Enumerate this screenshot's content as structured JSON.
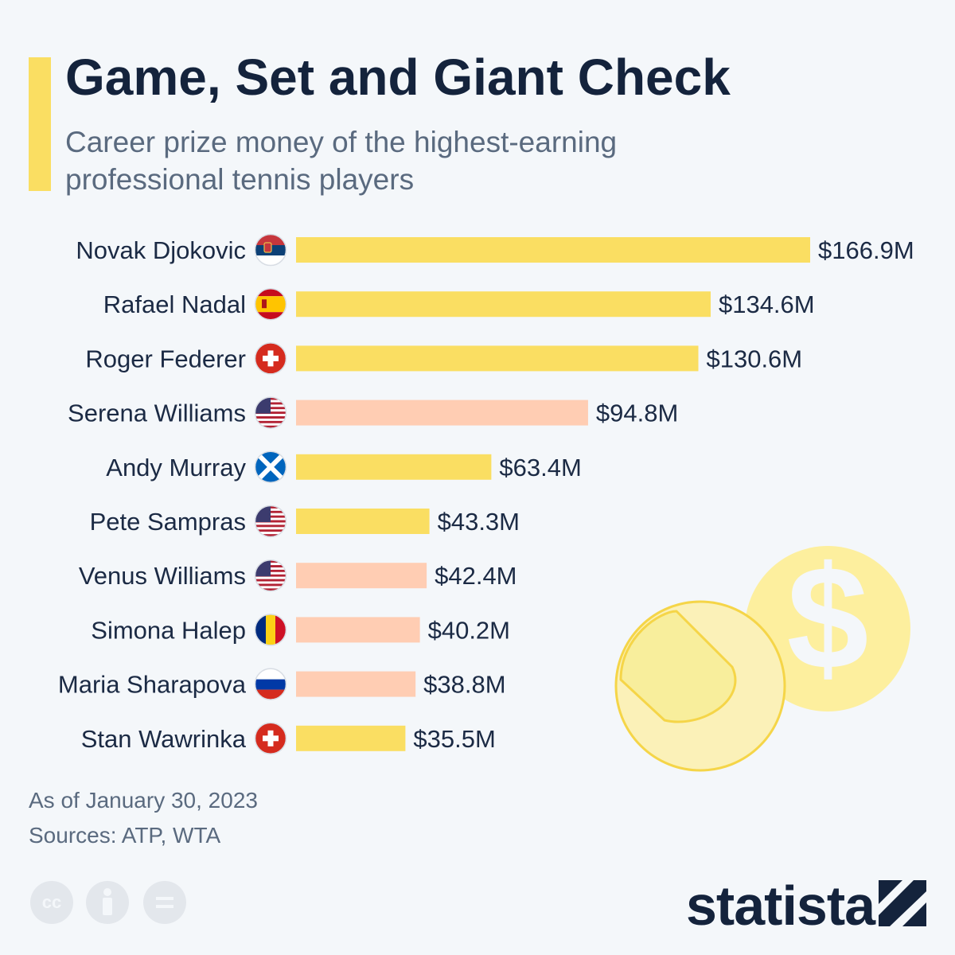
{
  "header": {
    "title": "Game, Set and Giant Check",
    "subtitle": "Career prize money of the highest-earning professional tennis players"
  },
  "footer": {
    "date_note": "As of January 30, 2023",
    "sources": "Sources: ATP, WTA",
    "license_icons": [
      "cc-icon",
      "attribution-icon",
      "no-derivatives-icon"
    ],
    "brand": "statista"
  },
  "colors": {
    "men": "#fade62",
    "women": "#ffcdb3",
    "title": "#14233c",
    "text": "#1b2a44",
    "muted": "#5a6a7f",
    "accent": "#fade62"
  },
  "chart_data": {
    "type": "bar",
    "orientation": "horizontal",
    "unit": "$M",
    "categories": [
      "Novak Djokovic",
      "Rafael Nadal",
      "Roger Federer",
      "Serena Williams",
      "Andy Murray",
      "Pete Sampras",
      "Venus Williams",
      "Simona Halep",
      "Maria Sharapova",
      "Stan Wawrinka"
    ],
    "values": [
      166.9,
      134.6,
      130.6,
      94.8,
      63.4,
      43.3,
      42.4,
      40.2,
      38.8,
      35.5
    ],
    "value_labels": [
      "$166.9M",
      "$134.6M",
      "$130.6M",
      "$94.8M",
      "$63.4M",
      "$43.3M",
      "$42.4M",
      "$40.2M",
      "$38.8M",
      "$35.5M"
    ],
    "genders": [
      "men",
      "men",
      "men",
      "women",
      "men",
      "men",
      "women",
      "women",
      "women",
      "men"
    ],
    "flags": [
      "serbia",
      "spain",
      "switzerland",
      "usa",
      "scotland",
      "usa",
      "usa",
      "romania",
      "russia",
      "switzerland"
    ],
    "xlim": [
      0,
      166.9
    ],
    "grid": false,
    "legend": "none"
  }
}
